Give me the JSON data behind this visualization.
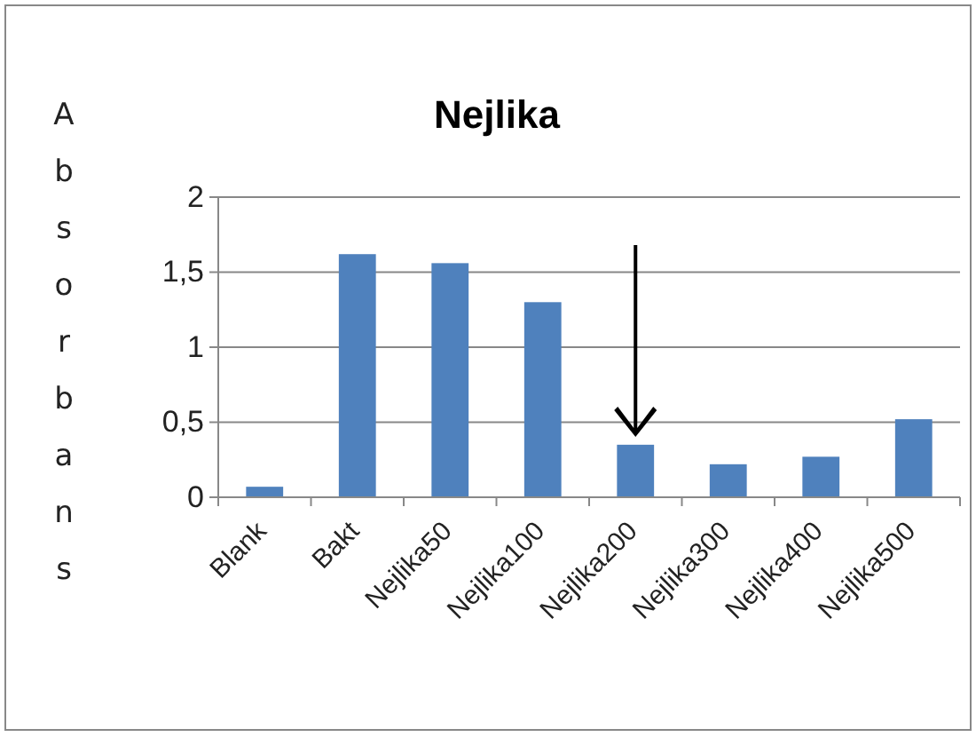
{
  "chart_data": {
    "type": "bar",
    "title": "Nejlika",
    "ylabel": "Absorbans",
    "categories": [
      "Blank",
      "Bakt",
      "Nejlika50",
      "Nejlika100",
      "Nejlika200",
      "Nejlika300",
      "Nejlika400",
      "Nejlika500"
    ],
    "values": [
      0.07,
      1.62,
      1.56,
      1.3,
      0.35,
      0.22,
      0.27,
      0.52
    ],
    "color": "#4f81bd",
    "ylim": [
      0,
      2
    ],
    "yticks": [
      0,
      {
        "value": 0.5,
        "label": "0,5"
      },
      1,
      {
        "value": 1.5,
        "label": "1,5"
      },
      2
    ],
    "grid": "y"
  }
}
